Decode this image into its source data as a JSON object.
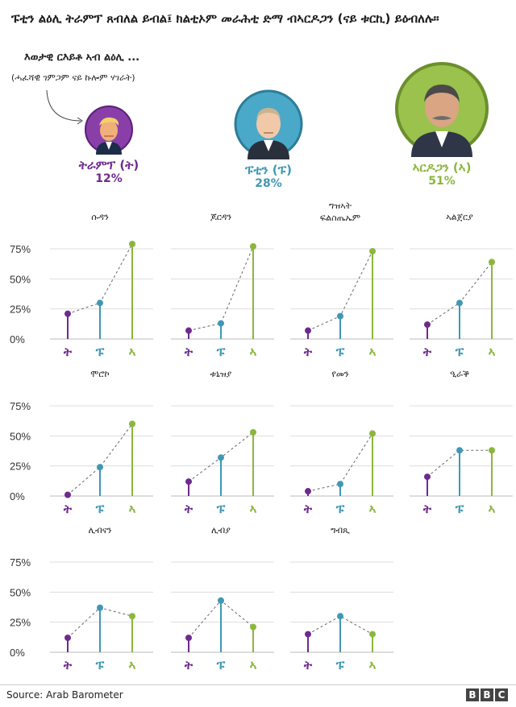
{
  "title": "ፑቲን ልዕሊ ትራምፕ ጸብለል ይብል፤ ክልቲኦም መራሕቲ ድማ ብኣርዶጋን (ናይ ቱርኪ) ይዕብለሉ።",
  "note": {
    "line1": "እወታዊ ርእይቶ ኣብ ልዕሊ ...",
    "line2": "(ሓፈሻዊ ገምጋም ናይ ኩሎም ሃገራት)"
  },
  "colors": {
    "trump": "#6e2a8e",
    "putin": "#3f98b5",
    "erdogan": "#8ab73c",
    "grid": "#dddddd"
  },
  "leaders": [
    {
      "key": "trump",
      "name": "ትራምፕ (ት)",
      "pct": "12%",
      "icon": "trump-portrait"
    },
    {
      "key": "putin",
      "name": "ፑቲን (ፑ)",
      "pct": "28%",
      "icon": "putin-portrait"
    },
    {
      "key": "erdogan",
      "name": "ኣርዶጋን (ኣ)",
      "pct": "51%",
      "icon": "erdogan-portrait"
    }
  ],
  "chart_data": {
    "type": "lollipop",
    "y_ticks": [
      "75%",
      "50%",
      "25%",
      "0%"
    ],
    "ylim": [
      0,
      80
    ],
    "categories": [
      "ት",
      "ፑ",
      "ኣ"
    ],
    "panels": [
      {
        "title": "ሱዳን",
        "values": [
          21,
          30,
          79
        ]
      },
      {
        "title": "ጆርዳን",
        "values": [
          7,
          13,
          77
        ]
      },
      {
        "title": "ግዝኣት ፍልስጤኤም",
        "values": [
          7,
          19,
          73
        ]
      },
      {
        "title": "ኣልጀርያ",
        "values": [
          12,
          30,
          64
        ]
      },
      {
        "title": "ሞሮኮ",
        "values": [
          1,
          24,
          60
        ]
      },
      {
        "title": "ቱኒዝያ",
        "values": [
          12,
          32,
          53
        ]
      },
      {
        "title": "የመን",
        "values": [
          4,
          10,
          52
        ]
      },
      {
        "title": "ዒራቕ",
        "values": [
          16,
          38,
          38
        ]
      },
      {
        "title": "ሊብናን",
        "values": [
          12,
          37,
          30
        ]
      },
      {
        "title": "ሊብያ",
        "values": [
          12,
          43,
          21
        ]
      },
      {
        "title": "ግብጺ",
        "values": [
          15,
          30,
          15
        ]
      }
    ]
  },
  "footer": {
    "source": "Source: Arab Barometer",
    "logo": [
      "B",
      "B",
      "C"
    ]
  }
}
